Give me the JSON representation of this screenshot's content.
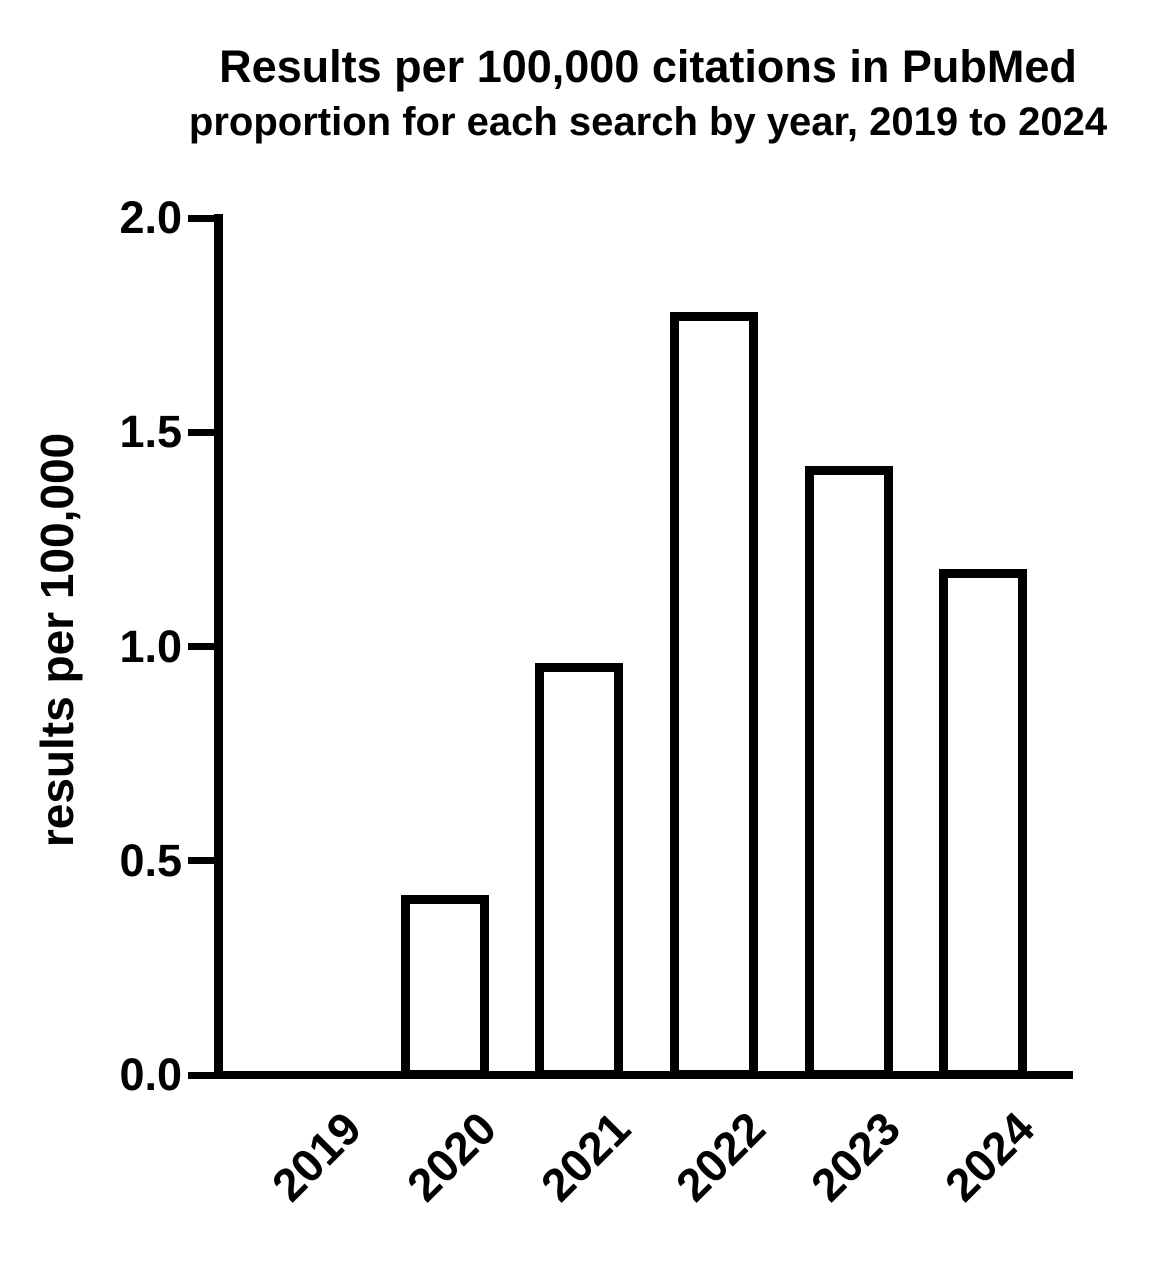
{
  "chart_data": {
    "type": "bar",
    "title": "Results per 100,000 citations in PubMed",
    "subtitle": "proportion for each search by year, 2019 to 2024",
    "xlabel": "",
    "ylabel": "results per 100,000",
    "categories": [
      "2019",
      "2020",
      "2021",
      "2022",
      "2023",
      "2024"
    ],
    "values": [
      0.0,
      0.41,
      0.95,
      1.77,
      1.41,
      1.17
    ],
    "ylim": [
      0.0,
      2.0
    ],
    "yticks": [
      0.0,
      0.5,
      1.0,
      1.5,
      2.0
    ],
    "ytick_labels": [
      "0.0",
      "0.5",
      "1.0",
      "1.5",
      "2.0"
    ],
    "x_tick_label_rotation_deg": 45,
    "grid": false,
    "legend": "none",
    "colors": {
      "background": "#ffffff",
      "foreground": "#000000",
      "bar_fill": "#ffffff",
      "bar_outline": "#000000"
    }
  }
}
